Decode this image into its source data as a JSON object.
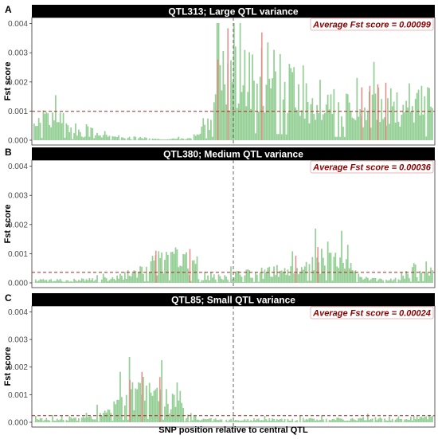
{
  "chart_data": [
    {
      "type": "bar",
      "panel_letter": "A",
      "title": "QTL313; Large QTL variance",
      "ylabel": "Fst score",
      "xlabel": "",
      "ylim": [
        0,
        0.0041
      ],
      "yticks": [
        "0.000",
        "0.001",
        "0.002",
        "0.003",
        "0.004"
      ],
      "average_label": "Average Fst score =  0.00099",
      "average": 0.00099,
      "central_qtl_position": 0.5,
      "grid": false,
      "bar_color": "#4caf4f",
      "highlight_color": "#f08080",
      "profile": {
        "n": 260,
        "breakpoints": [
          [
            0,
            0.00075
          ],
          [
            0.08,
            0.00085
          ],
          [
            0.1,
            0.0003
          ],
          [
            0.17,
            0.00015
          ],
          [
            0.3,
            5e-05
          ],
          [
            0.4,
            5e-05
          ],
          [
            0.44,
            0.0008
          ],
          [
            0.47,
            0.0022
          ],
          [
            0.5,
            0.0026
          ],
          [
            0.52,
            0.0025
          ],
          [
            0.6,
            0.0022
          ],
          [
            0.68,
            0.0017
          ],
          [
            0.74,
            0.0012
          ],
          [
            0.8,
            0.0011
          ],
          [
            0.86,
            0.0012
          ],
          [
            0.92,
            0.0013
          ],
          [
            0.96,
            0.0014
          ],
          [
            1.0,
            0.0012
          ]
        ],
        "highlights": [
          0.46,
          0.485,
          0.57,
          0.82,
          0.84,
          0.86,
          0.88
        ],
        "seed": 313
      }
    },
    {
      "type": "bar",
      "panel_letter": "B",
      "title": "QTL380; Medium QTL variance",
      "ylabel": "Fst score",
      "xlabel": "",
      "ylim": [
        0,
        0.0041
      ],
      "yticks": [
        "0.000",
        "0.001",
        "0.002",
        "0.003",
        "0.004"
      ],
      "average_label": "Average Fst score =  0.00036",
      "average": 0.00036,
      "central_qtl_position": 0.5,
      "grid": false,
      "bar_color": "#4caf4f",
      "highlight_color": "#f08080",
      "profile": {
        "n": 260,
        "breakpoints": [
          [
            0,
            0.0001
          ],
          [
            0.1,
            0.0001
          ],
          [
            0.2,
            0.00015
          ],
          [
            0.26,
            0.0004
          ],
          [
            0.33,
            0.00085
          ],
          [
            0.38,
            0.0009
          ],
          [
            0.42,
            0.0002
          ],
          [
            0.48,
            0.0002
          ],
          [
            0.52,
            0.0003
          ],
          [
            0.6,
            0.0004
          ],
          [
            0.66,
            0.0006
          ],
          [
            0.72,
            0.0008
          ],
          [
            0.78,
            0.0007
          ],
          [
            0.82,
            0.00015
          ],
          [
            0.9,
            0.0001
          ],
          [
            0.94,
            0.0004
          ],
          [
            1.0,
            0.0007
          ]
        ],
        "highlights": [
          0.305,
          0.39,
          0.655,
          0.71
        ],
        "seed": 380
      }
    },
    {
      "type": "bar",
      "panel_letter": "C",
      "title": "QTL85; Small QTL variance",
      "ylabel": "Fst score",
      "xlabel": "SNP position relative to central QTL",
      "ylim": [
        0,
        0.0041
      ],
      "yticks": [
        "0.000",
        "0.001",
        "0.002",
        "0.003",
        "0.004"
      ],
      "average_label": "Average Fst score =  0.00024",
      "average": 0.00024,
      "central_qtl_position": 0.5,
      "grid": false,
      "bar_color": "#4caf4f",
      "highlight_color": "#f08080",
      "profile": {
        "n": 260,
        "breakpoints": [
          [
            0,
            0.00012
          ],
          [
            0.1,
            0.00012
          ],
          [
            0.18,
            0.0003
          ],
          [
            0.23,
            0.0009
          ],
          [
            0.28,
            0.0012
          ],
          [
            0.32,
            0.001
          ],
          [
            0.36,
            0.0006
          ],
          [
            0.39,
            0.00025
          ],
          [
            0.42,
            0.0001
          ],
          [
            0.6,
            0.0001
          ],
          [
            0.8,
            0.00012
          ],
          [
            1.0,
            0.0002
          ]
        ],
        "highlights": [
          0.24,
          0.27,
          0.315
        ],
        "seed": 85
      }
    }
  ]
}
